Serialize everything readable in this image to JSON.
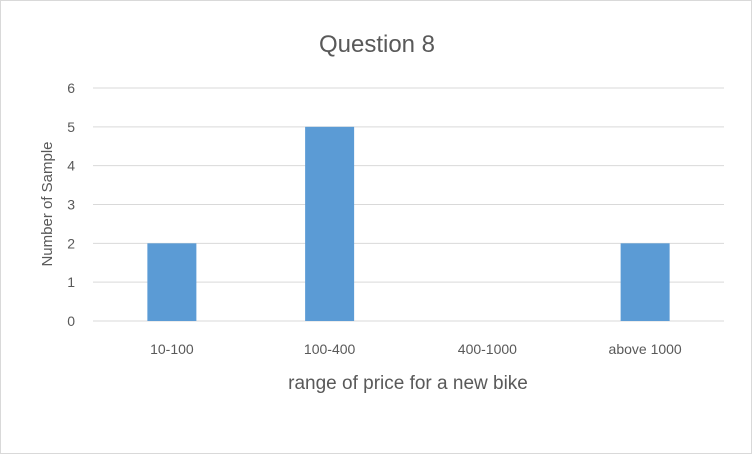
{
  "chart_data": {
    "type": "bar",
    "title": "Question 8",
    "xlabel": "range of price for a new bike",
    "ylabel": "Number of Sample",
    "categories": [
      "10-100",
      "100-400",
      "400-1000",
      "above 1000"
    ],
    "values": [
      2,
      5,
      0,
      2
    ],
    "ylim": [
      0,
      6
    ],
    "yticks": [
      "0",
      "1",
      "2",
      "3",
      "4",
      "5",
      "6"
    ],
    "grid": true,
    "legend": "none",
    "bar_color": "#5b9bd5",
    "grid_color": "#d9d9d9"
  }
}
